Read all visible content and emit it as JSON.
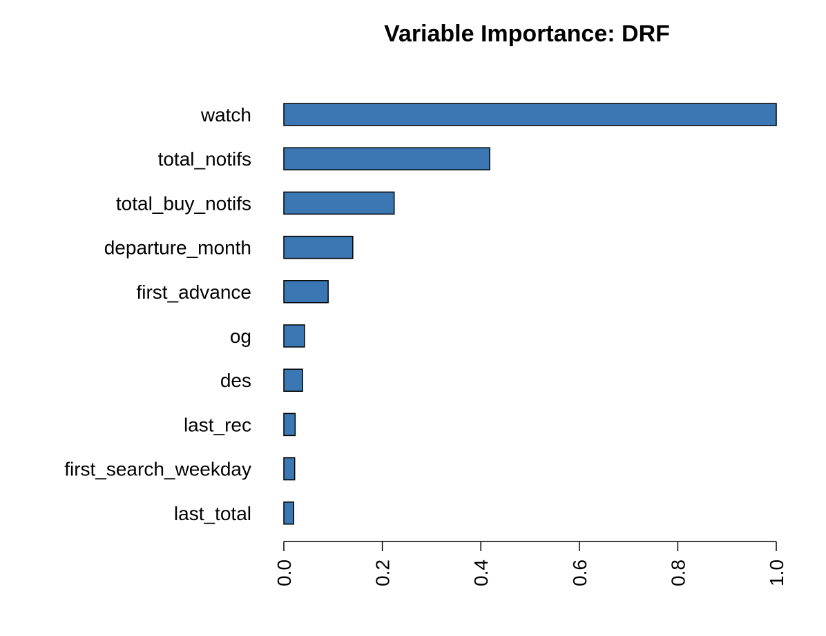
{
  "chart_data": {
    "type": "bar",
    "orientation": "horizontal",
    "title": "Variable Importance: DRF",
    "xlabel": "",
    "ylabel": "",
    "categories": [
      "watch",
      "total_notifs",
      "total_buy_notifs",
      "departure_month",
      "first_advance",
      "og",
      "des",
      "last_rec",
      "first_search_weekday",
      "last_total"
    ],
    "values": [
      1.0,
      0.418,
      0.224,
      0.14,
      0.09,
      0.042,
      0.038,
      0.023,
      0.022,
      0.02
    ],
    "xlim": [
      0,
      1
    ],
    "xticks": [
      0.0,
      0.2,
      0.4,
      0.6,
      0.8,
      1.0
    ],
    "xtick_labels": [
      "0.0",
      "0.2",
      "0.4",
      "0.6",
      "0.8",
      "1.0"
    ],
    "bar_color": "#3b78b3",
    "grid": false,
    "legend": "none"
  }
}
